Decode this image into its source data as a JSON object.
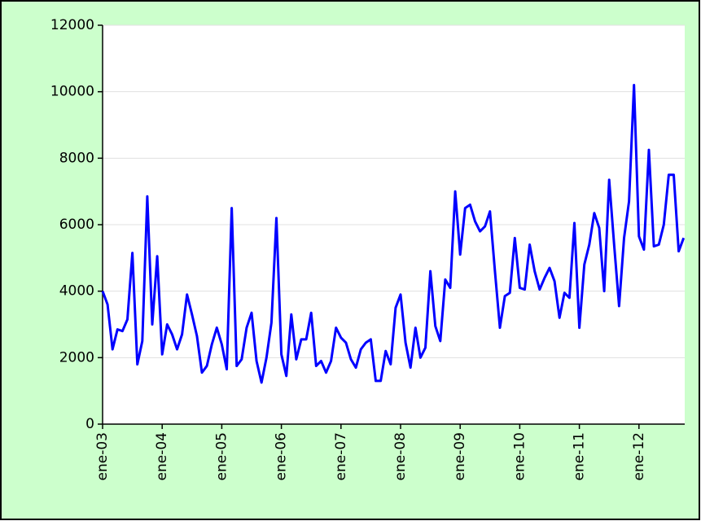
{
  "chart_data": {
    "type": "line",
    "categories": [
      "ene-03",
      null,
      null,
      null,
      null,
      null,
      null,
      null,
      null,
      null,
      null,
      null,
      "ene-04",
      null,
      null,
      null,
      null,
      null,
      null,
      null,
      null,
      null,
      null,
      null,
      "ene-05",
      null,
      null,
      null,
      null,
      null,
      null,
      null,
      null,
      null,
      null,
      null,
      "ene-06",
      null,
      null,
      null,
      null,
      null,
      null,
      null,
      null,
      null,
      null,
      null,
      "ene-07",
      null,
      null,
      null,
      null,
      null,
      null,
      null,
      null,
      null,
      null,
      null,
      "ene-08",
      null,
      null,
      null,
      null,
      null,
      null,
      null,
      null,
      null,
      null,
      null,
      "ene-09",
      null,
      null,
      null,
      null,
      null,
      null,
      null,
      null,
      null,
      null,
      null,
      "ene-10",
      null,
      null,
      null,
      null,
      null,
      null,
      null,
      null,
      null,
      null,
      null,
      "ene-11",
      null,
      null,
      null,
      null,
      null,
      null,
      null,
      null,
      null,
      null,
      null,
      "ene-12",
      null,
      null,
      null,
      null,
      null,
      null,
      null,
      null,
      null
    ],
    "values": [
      4000,
      3600,
      2250,
      2850,
      2800,
      3150,
      5150,
      1800,
      2500,
      6850,
      3000,
      5050,
      2100,
      3000,
      2700,
      2250,
      2700,
      3900,
      3300,
      2650,
      1550,
      1750,
      2400,
      2900,
      2400,
      1650,
      6500,
      1750,
      1950,
      2900,
      3350,
      1900,
      1250,
      2000,
      3050,
      6200,
      2100,
      1450,
      3300,
      1950,
      2550,
      2550,
      3350,
      1750,
      1900,
      1550,
      1900,
      2900,
      2600,
      2450,
      1950,
      1700,
      2250,
      2450,
      2550,
      1300,
      1300,
      2200,
      1800,
      3500,
      3900,
      2450,
      1700,
      2900,
      2000,
      2300,
      4600,
      2950,
      2500,
      4350,
      4100,
      7000,
      5100,
      6500,
      6600,
      6100,
      5800,
      5950,
      6400,
      4600,
      2900,
      3850,
      3950,
      5600,
      4100,
      4050,
      5400,
      4600,
      4050,
      4400,
      4700,
      4300,
      3200,
      3950,
      3800,
      6050,
      2900,
      4800,
      5400,
      6350,
      5900,
      4000,
      7350,
      5400,
      3550,
      5600,
      6700,
      10200,
      5650,
      5250,
      8250,
      5350,
      5400,
      6000,
      7500,
      7500,
      5200,
      5600
    ],
    "color": "#0000ff",
    "ylim": [
      0,
      12000
    ],
    "yticks": [
      0,
      2000,
      4000,
      6000,
      8000,
      10000,
      12000
    ],
    "grid": true
  }
}
